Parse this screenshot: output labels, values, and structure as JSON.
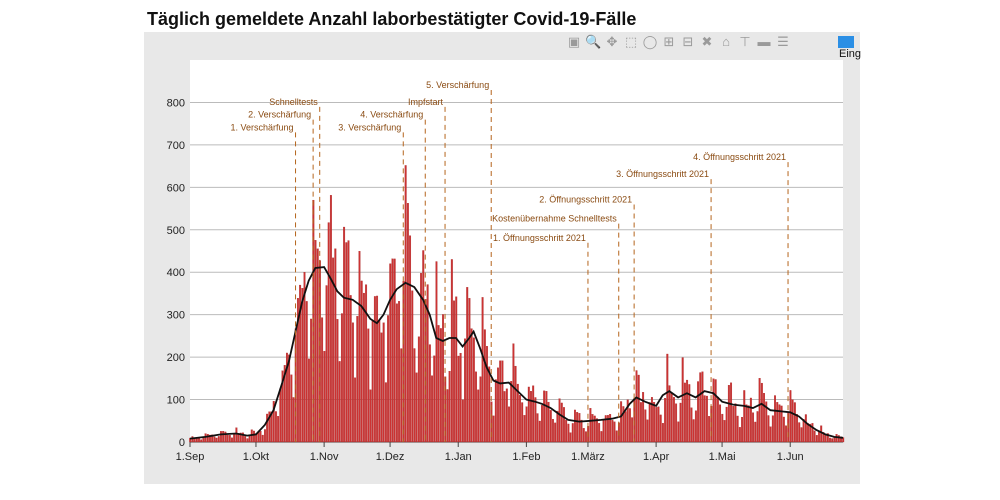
{
  "title": "Täglich gemeldete Anzahl laborbestätigter Covid-19-Fälle",
  "toolbar": {
    "icons": [
      "camera-icon",
      "zoom-icon",
      "pan-icon",
      "box-select-icon",
      "lasso-select-icon",
      "zoom-in-icon",
      "zoom-out-icon",
      "autoscale-icon",
      "reset-axes-icon",
      "spike-lines-icon",
      "hover-closest-icon",
      "hover-compare-icon",
      "legend-toggle-icon"
    ]
  },
  "legend_label": "Eing",
  "colors": {
    "bar": "#cc3333",
    "bar_edge": "#a82626",
    "line": "#111111",
    "annotation": "#b5651d",
    "plot_bg": "#ffffff",
    "panel_bg": "#e8e8e8",
    "grid": "#bbbbbb"
  },
  "chart_data": {
    "type": "bar",
    "x_range": [
      "2020-09-01",
      "2021-06-25"
    ],
    "ylim": [
      0,
      900
    ],
    "y_ticks": [
      0,
      100,
      200,
      300,
      400,
      500,
      600,
      700,
      800
    ],
    "x_ticks": [
      {
        "date": "2020-09-01",
        "label": "1.Sep"
      },
      {
        "date": "2020-10-01",
        "label": "1.Okt"
      },
      {
        "date": "2020-11-01",
        "label": "1.Nov"
      },
      {
        "date": "2020-12-01",
        "label": "1.Dez"
      },
      {
        "date": "2021-01-01",
        "label": "1.Jan"
      },
      {
        "date": "2021-02-01",
        "label": "1.Feb"
      },
      {
        "date": "2021-03-01",
        "label": "1.März"
      },
      {
        "date": "2021-04-01",
        "label": "1.Apr"
      },
      {
        "date": "2021-05-01",
        "label": "1.Mai"
      },
      {
        "date": "2021-06-01",
        "label": "1.Jun"
      }
    ],
    "trend": [
      [
        "2020-09-01",
        8
      ],
      [
        "2020-09-08",
        12
      ],
      [
        "2020-09-15",
        18
      ],
      [
        "2020-09-22",
        20
      ],
      [
        "2020-09-27",
        15
      ],
      [
        "2020-10-01",
        18
      ],
      [
        "2020-10-05",
        40
      ],
      [
        "2020-10-09",
        75
      ],
      [
        "2020-10-13",
        140
      ],
      [
        "2020-10-16",
        190
      ],
      [
        "2020-10-19",
        260
      ],
      [
        "2020-10-22",
        330
      ],
      [
        "2020-10-25",
        380
      ],
      [
        "2020-10-28",
        410
      ],
      [
        "2020-11-01",
        412
      ],
      [
        "2020-11-04",
        385
      ],
      [
        "2020-11-07",
        355
      ],
      [
        "2020-11-10",
        340
      ],
      [
        "2020-11-14",
        335
      ],
      [
        "2020-11-18",
        320
      ],
      [
        "2020-11-22",
        290
      ],
      [
        "2020-11-25",
        280
      ],
      [
        "2020-11-28",
        300
      ],
      [
        "2020-12-01",
        335
      ],
      [
        "2020-12-04",
        360
      ],
      [
        "2020-12-08",
        375
      ],
      [
        "2020-12-12",
        365
      ],
      [
        "2020-12-16",
        335
      ],
      [
        "2020-12-19",
        300
      ],
      [
        "2020-12-22",
        245
      ],
      [
        "2020-12-25",
        238
      ],
      [
        "2020-12-28",
        245
      ],
      [
        "2020-12-31",
        245
      ],
      [
        "2021-01-03",
        225
      ],
      [
        "2021-01-06",
        245
      ],
      [
        "2021-01-08",
        260
      ],
      [
        "2021-01-11",
        220
      ],
      [
        "2021-01-14",
        175
      ],
      [
        "2021-01-17",
        145
      ],
      [
        "2021-01-20",
        138
      ],
      [
        "2021-01-24",
        140
      ],
      [
        "2021-01-28",
        120
      ],
      [
        "2021-02-01",
        100
      ],
      [
        "2021-02-05",
        95
      ],
      [
        "2021-02-08",
        90
      ],
      [
        "2021-02-12",
        80
      ],
      [
        "2021-02-16",
        65
      ],
      [
        "2021-02-20",
        52
      ],
      [
        "2021-02-25",
        48
      ],
      [
        "2021-03-02",
        50
      ],
      [
        "2021-03-07",
        52
      ],
      [
        "2021-03-12",
        55
      ],
      [
        "2021-03-16",
        60
      ],
      [
        "2021-03-20",
        90
      ],
      [
        "2021-03-23",
        105
      ],
      [
        "2021-03-27",
        95
      ],
      [
        "2021-04-01",
        85
      ],
      [
        "2021-04-04",
        110
      ],
      [
        "2021-04-07",
        120
      ],
      [
        "2021-04-11",
        105
      ],
      [
        "2021-04-15",
        115
      ],
      [
        "2021-04-19",
        105
      ],
      [
        "2021-04-23",
        120
      ],
      [
        "2021-04-27",
        115
      ],
      [
        "2021-05-01",
        95
      ],
      [
        "2021-05-06",
        88
      ],
      [
        "2021-05-11",
        85
      ],
      [
        "2021-05-15",
        80
      ],
      [
        "2021-05-19",
        90
      ],
      [
        "2021-05-23",
        75
      ],
      [
        "2021-05-28",
        72
      ],
      [
        "2021-06-01",
        70
      ],
      [
        "2021-06-05",
        60
      ],
      [
        "2021-06-09",
        42
      ],
      [
        "2021-06-13",
        28
      ],
      [
        "2021-06-17",
        18
      ],
      [
        "2021-06-21",
        12
      ],
      [
        "2021-06-25",
        10
      ]
    ],
    "annotations": [
      {
        "date": "2020-10-19",
        "label": "1. Verschärfung",
        "y": 720
      },
      {
        "date": "2020-10-27",
        "label": "2. Verschärfung",
        "y": 750
      },
      {
        "date": "2020-10-30",
        "label": "Schnelltests",
        "y": 780
      },
      {
        "date": "2020-12-07",
        "label": "3. Verschärfung",
        "y": 720
      },
      {
        "date": "2020-12-17",
        "label": "4. Verschärfung",
        "y": 750
      },
      {
        "date": "2020-12-26",
        "label": "Impfstart",
        "y": 780
      },
      {
        "date": "2021-01-16",
        "label": "5. Verschärfung",
        "y": 820
      },
      {
        "date": "2021-03-01",
        "label": "1. Öffnungsschritt 2021",
        "y": 460
      },
      {
        "date": "2021-03-15",
        "label": "Kostenübernahme Schnelltests",
        "y": 505
      },
      {
        "date": "2021-03-22",
        "label": "2. Öffnungsschritt 2021",
        "y": 550
      },
      {
        "date": "2021-04-26",
        "label": "3. Öffnungsschritt 2021",
        "y": 610
      },
      {
        "date": "2021-05-31",
        "label": "4. Öffnungsschritt 2021",
        "y": 650
      }
    ]
  }
}
